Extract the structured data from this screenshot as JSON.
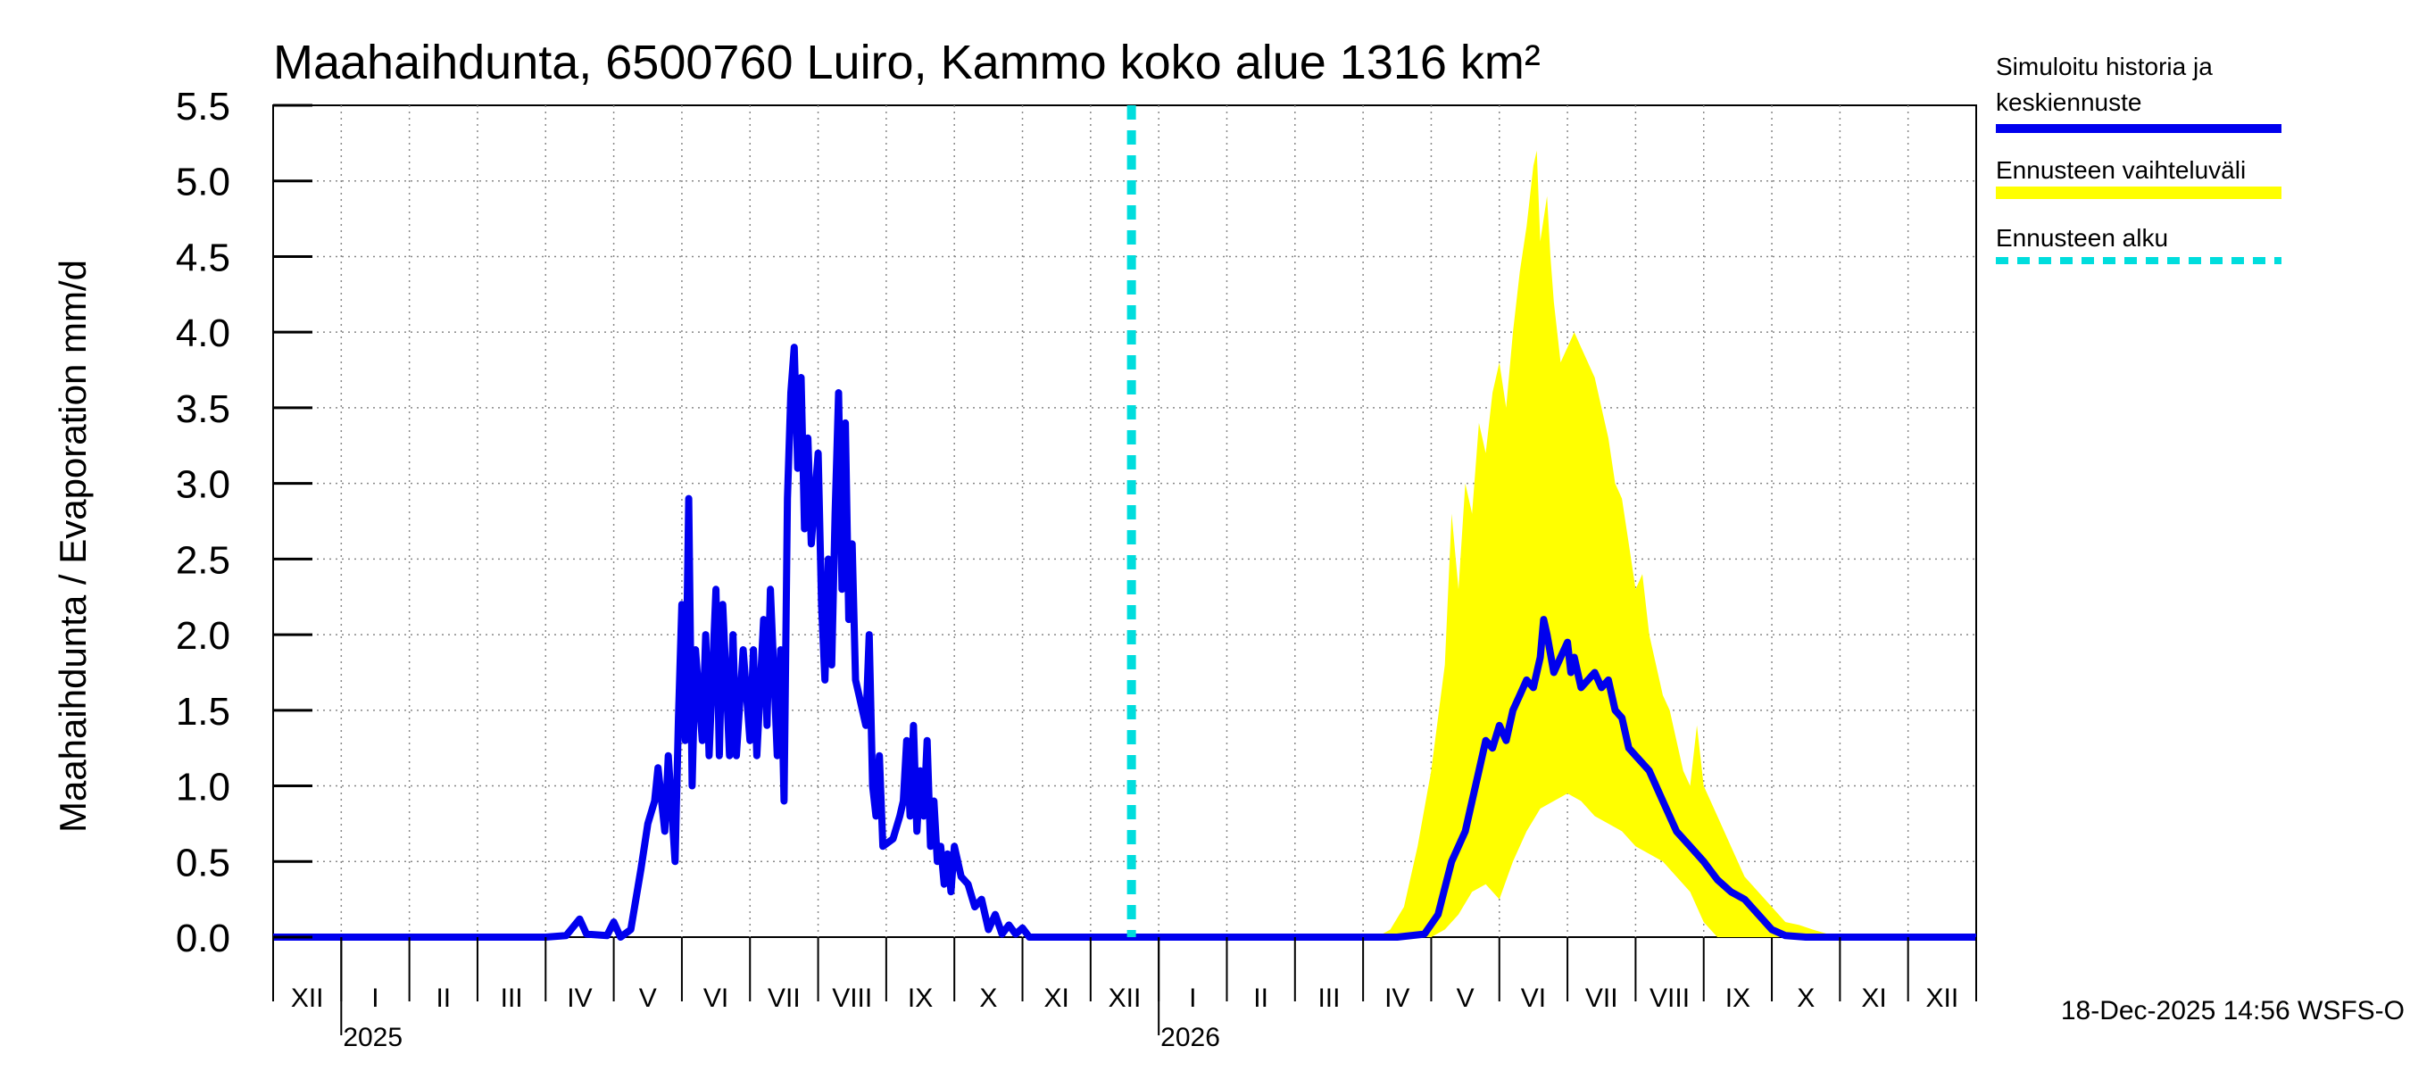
{
  "chart_data": {
    "type": "area",
    "title": "Maahaihdunta, 6500760 Luiro, Kammo koko alue 1316 km²",
    "ylabel": "Maahaihdunta / Evaporation   mm/d",
    "xlabel": "",
    "ylim": [
      0,
      5.5
    ],
    "yticks": [
      0.0,
      0.5,
      1.0,
      1.5,
      2.0,
      2.5,
      3.0,
      3.5,
      4.0,
      4.5,
      5.0,
      5.5
    ],
    "ytick_labels": [
      "0.0",
      "0.5",
      "1.0",
      "1.5",
      "2.0",
      "2.5",
      "3.0",
      "3.5",
      "4.0",
      "4.5",
      "5.0",
      "5.5"
    ],
    "xlim_months": [
      0,
      25
    ],
    "month_labels": [
      "XII",
      "I",
      "II",
      "III",
      "IV",
      "V",
      "VI",
      "VII",
      "VIII",
      "IX",
      "X",
      "XI",
      "XII",
      "I",
      "II",
      "III",
      "IV",
      "V",
      "VI",
      "VII",
      "VIII",
      "IX",
      "X",
      "XI",
      "XII"
    ],
    "year_labels": [
      {
        "text": "2025",
        "month": 1
      },
      {
        "text": "2026",
        "month": 13
      }
    ],
    "grid": true,
    "forecast_start_month": 12.6,
    "legend_position": "right",
    "series": [
      {
        "name": "Simuloitu historia ja keskiennuste",
        "kind": "line",
        "color": "#0000ee",
        "points": [
          [
            0,
            0
          ],
          [
            4.0,
            0
          ],
          [
            4.3,
            0.01
          ],
          [
            4.5,
            0.12
          ],
          [
            4.6,
            0.02
          ],
          [
            4.9,
            0.01
          ],
          [
            5.0,
            0.1
          ],
          [
            5.1,
            0.0
          ],
          [
            5.25,
            0.05
          ],
          [
            5.4,
            0.45
          ],
          [
            5.5,
            0.75
          ],
          [
            5.6,
            0.9
          ],
          [
            5.65,
            1.12
          ],
          [
            5.75,
            0.7
          ],
          [
            5.8,
            1.2
          ],
          [
            5.9,
            0.5
          ],
          [
            5.95,
            1.45
          ],
          [
            6.0,
            2.2
          ],
          [
            6.05,
            1.3
          ],
          [
            6.1,
            2.9
          ],
          [
            6.15,
            1.0
          ],
          [
            6.2,
            1.9
          ],
          [
            6.3,
            1.3
          ],
          [
            6.35,
            2.0
          ],
          [
            6.4,
            1.2
          ],
          [
            6.5,
            2.3
          ],
          [
            6.55,
            1.2
          ],
          [
            6.6,
            2.2
          ],
          [
            6.7,
            1.2
          ],
          [
            6.75,
            2.0
          ],
          [
            6.8,
            1.2
          ],
          [
            6.9,
            1.9
          ],
          [
            7.0,
            1.3
          ],
          [
            7.05,
            1.9
          ],
          [
            7.1,
            1.2
          ],
          [
            7.2,
            2.1
          ],
          [
            7.25,
            1.4
          ],
          [
            7.3,
            2.3
          ],
          [
            7.4,
            1.2
          ],
          [
            7.45,
            1.9
          ],
          [
            7.5,
            0.9
          ],
          [
            7.55,
            2.9
          ],
          [
            7.6,
            3.6
          ],
          [
            7.65,
            3.9
          ],
          [
            7.7,
            3.1
          ],
          [
            7.75,
            3.7
          ],
          [
            7.8,
            2.7
          ],
          [
            7.85,
            3.3
          ],
          [
            7.9,
            2.6
          ],
          [
            8.0,
            3.2
          ],
          [
            8.05,
            2.2
          ],
          [
            8.1,
            1.7
          ],
          [
            8.15,
            2.5
          ],
          [
            8.2,
            1.8
          ],
          [
            8.25,
            2.8
          ],
          [
            8.3,
            3.6
          ],
          [
            8.35,
            2.3
          ],
          [
            8.4,
            3.4
          ],
          [
            8.45,
            2.1
          ],
          [
            8.5,
            2.6
          ],
          [
            8.55,
            1.7
          ],
          [
            8.6,
            1.6
          ],
          [
            8.7,
            1.4
          ],
          [
            8.75,
            2.0
          ],
          [
            8.8,
            1.0
          ],
          [
            8.85,
            0.8
          ],
          [
            8.9,
            1.2
          ],
          [
            8.95,
            0.6
          ],
          [
            9.1,
            0.65
          ],
          [
            9.2,
            0.8
          ],
          [
            9.25,
            0.9
          ],
          [
            9.3,
            1.3
          ],
          [
            9.35,
            0.8
          ],
          [
            9.4,
            1.4
          ],
          [
            9.45,
            0.7
          ],
          [
            9.5,
            1.1
          ],
          [
            9.55,
            0.8
          ],
          [
            9.6,
            1.3
          ],
          [
            9.65,
            0.6
          ],
          [
            9.7,
            0.9
          ],
          [
            9.75,
            0.5
          ],
          [
            9.8,
            0.6
          ],
          [
            9.85,
            0.35
          ],
          [
            9.9,
            0.55
          ],
          [
            9.95,
            0.3
          ],
          [
            10.0,
            0.6
          ],
          [
            10.1,
            0.4
          ],
          [
            10.2,
            0.35
          ],
          [
            10.3,
            0.2
          ],
          [
            10.4,
            0.25
          ],
          [
            10.5,
            0.05
          ],
          [
            10.6,
            0.15
          ],
          [
            10.7,
            0.02
          ],
          [
            10.8,
            0.08
          ],
          [
            10.9,
            0.02
          ],
          [
            11.0,
            0.06
          ],
          [
            11.1,
            0.0
          ],
          [
            11.6,
            0
          ],
          [
            12.6,
            0
          ],
          [
            16.5,
            0
          ],
          [
            16.9,
            0.02
          ],
          [
            17.1,
            0.15
          ],
          [
            17.3,
            0.5
          ],
          [
            17.5,
            0.7
          ],
          [
            17.6,
            0.9
          ],
          [
            17.7,
            1.1
          ],
          [
            17.8,
            1.3
          ],
          [
            17.9,
            1.25
          ],
          [
            18.0,
            1.4
          ],
          [
            18.1,
            1.3
          ],
          [
            18.2,
            1.5
          ],
          [
            18.3,
            1.6
          ],
          [
            18.4,
            1.7
          ],
          [
            18.5,
            1.65
          ],
          [
            18.6,
            1.85
          ],
          [
            18.65,
            2.1
          ],
          [
            18.7,
            2.0
          ],
          [
            18.8,
            1.75
          ],
          [
            18.9,
            1.85
          ],
          [
            19.0,
            1.95
          ],
          [
            19.05,
            1.75
          ],
          [
            19.1,
            1.85
          ],
          [
            19.2,
            1.65
          ],
          [
            19.3,
            1.7
          ],
          [
            19.4,
            1.75
          ],
          [
            19.5,
            1.65
          ],
          [
            19.6,
            1.7
          ],
          [
            19.7,
            1.5
          ],
          [
            19.8,
            1.45
          ],
          [
            19.9,
            1.25
          ],
          [
            20.0,
            1.2
          ],
          [
            20.2,
            1.1
          ],
          [
            20.4,
            0.9
          ],
          [
            20.6,
            0.7
          ],
          [
            20.8,
            0.6
          ],
          [
            21.0,
            0.5
          ],
          [
            21.2,
            0.38
          ],
          [
            21.4,
            0.3
          ],
          [
            21.6,
            0.25
          ],
          [
            21.8,
            0.15
          ],
          [
            22.0,
            0.05
          ],
          [
            22.2,
            0.01
          ],
          [
            22.5,
            0
          ],
          [
            25,
            0
          ]
        ]
      },
      {
        "name": "Ennusteen vaihteluväli",
        "kind": "band",
        "color": "#ffff00",
        "upper": [
          [
            16.2,
            0
          ],
          [
            16.4,
            0.05
          ],
          [
            16.6,
            0.2
          ],
          [
            16.8,
            0.6
          ],
          [
            17.0,
            1.1
          ],
          [
            17.2,
            1.8
          ],
          [
            17.3,
            2.8
          ],
          [
            17.4,
            2.3
          ],
          [
            17.5,
            3.0
          ],
          [
            17.6,
            2.8
          ],
          [
            17.7,
            3.4
          ],
          [
            17.8,
            3.2
          ],
          [
            17.9,
            3.6
          ],
          [
            18.0,
            3.8
          ],
          [
            18.1,
            3.5
          ],
          [
            18.2,
            4.0
          ],
          [
            18.3,
            4.4
          ],
          [
            18.4,
            4.7
          ],
          [
            18.5,
            5.1
          ],
          [
            18.55,
            5.2
          ],
          [
            18.6,
            4.6
          ],
          [
            18.7,
            4.9
          ],
          [
            18.75,
            4.5
          ],
          [
            18.8,
            4.2
          ],
          [
            18.9,
            3.8
          ],
          [
            19.0,
            3.9
          ],
          [
            19.1,
            4.0
          ],
          [
            19.2,
            3.9
          ],
          [
            19.3,
            3.8
          ],
          [
            19.4,
            3.7
          ],
          [
            19.5,
            3.5
          ],
          [
            19.6,
            3.3
          ],
          [
            19.7,
            3.0
          ],
          [
            19.8,
            2.9
          ],
          [
            19.9,
            2.6
          ],
          [
            20.0,
            2.3
          ],
          [
            20.1,
            2.4
          ],
          [
            20.2,
            2.0
          ],
          [
            20.3,
            1.8
          ],
          [
            20.4,
            1.6
          ],
          [
            20.5,
            1.5
          ],
          [
            20.6,
            1.3
          ],
          [
            20.7,
            1.1
          ],
          [
            20.8,
            1.0
          ],
          [
            20.9,
            1.4
          ],
          [
            21.0,
            1.0
          ],
          [
            21.1,
            0.9
          ],
          [
            21.2,
            0.8
          ],
          [
            21.4,
            0.6
          ],
          [
            21.6,
            0.4
          ],
          [
            21.8,
            0.3
          ],
          [
            22.0,
            0.2
          ],
          [
            22.2,
            0.1
          ],
          [
            22.4,
            0.08
          ],
          [
            22.6,
            0.05
          ],
          [
            22.9,
            0.01
          ],
          [
            23.0,
            0
          ]
        ],
        "lower": [
          [
            16.2,
            0
          ],
          [
            17.0,
            0
          ],
          [
            17.2,
            0.05
          ],
          [
            17.4,
            0.15
          ],
          [
            17.6,
            0.3
          ],
          [
            17.8,
            0.35
          ],
          [
            18.0,
            0.25
          ],
          [
            18.2,
            0.5
          ],
          [
            18.4,
            0.7
          ],
          [
            18.6,
            0.85
          ],
          [
            18.8,
            0.9
          ],
          [
            19.0,
            0.95
          ],
          [
            19.2,
            0.9
          ],
          [
            19.4,
            0.8
          ],
          [
            19.6,
            0.75
          ],
          [
            19.8,
            0.7
          ],
          [
            20.0,
            0.6
          ],
          [
            20.2,
            0.55
          ],
          [
            20.4,
            0.5
          ],
          [
            20.6,
            0.4
          ],
          [
            20.8,
            0.3
          ],
          [
            21.0,
            0.1
          ],
          [
            21.2,
            0.0
          ],
          [
            23.0,
            0
          ]
        ]
      },
      {
        "name": "Ennusteen alku",
        "kind": "vline",
        "color": "#00dddd"
      }
    ],
    "footer": "18-Dec-2025 14:56 WSFS-O"
  }
}
